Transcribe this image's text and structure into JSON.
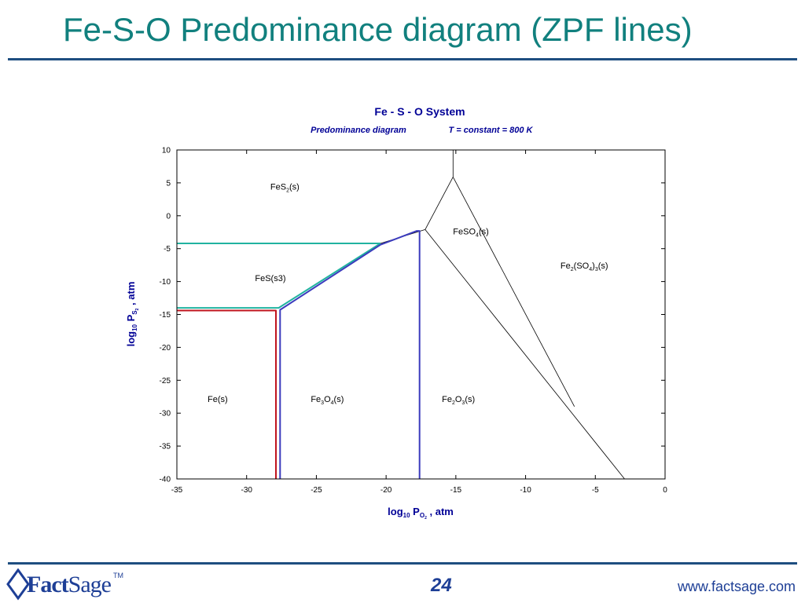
{
  "slide": {
    "title": "Fe-S-O Predominance diagram (ZPF lines)",
    "page_number": "24",
    "website": "www.factsage.com",
    "logo": {
      "text_fact": "Fact",
      "text_sage": "Sage",
      "tm": "TM",
      "icon": "factsage-logo-icon"
    }
  },
  "chart_data": {
    "type": "line",
    "title": "Fe - S - O System",
    "subtitle_left": "Predominance diagram",
    "subtitle_right": "T = constant = 800 K",
    "xlabel": {
      "base": "log",
      "sub": "10",
      "p": " P",
      "psub": "O",
      "psub2": "2",
      "tail": " , atm"
    },
    "ylabel": {
      "base": "log",
      "sub": "10",
      "p": " P",
      "psub": "S",
      "psub2": "2",
      "tail": " , atm"
    },
    "xlim": [
      -35,
      0
    ],
    "ylim": [
      -40,
      10
    ],
    "xticks": [
      -35,
      -30,
      -25,
      -20,
      -15,
      -10,
      -5,
      0
    ],
    "yticks": [
      10,
      5,
      0,
      -5,
      -10,
      -15,
      -20,
      -25,
      -30,
      -35,
      -40
    ],
    "colors": {
      "title": "#000096",
      "black": "#000000",
      "teal": "#21b3a0",
      "blue": "#3b3bbd",
      "red": "#c0141e"
    },
    "regions": [
      {
        "parts": [
          [
            "FeS",
            false
          ],
          [
            "2",
            true
          ],
          [
            "(s)",
            false
          ]
        ],
        "x": -28.3,
        "y": 4.0
      },
      {
        "parts": [
          [
            "FeSO",
            false
          ],
          [
            "4",
            true
          ],
          [
            "(s)",
            false
          ]
        ],
        "x": -15.2,
        "y": -2.8
      },
      {
        "parts": [
          [
            "Fe",
            false
          ],
          [
            "2",
            true
          ],
          [
            "(SO",
            false
          ],
          [
            "4",
            true
          ],
          [
            ")",
            false
          ],
          [
            "3",
            true
          ],
          [
            "(s)",
            false
          ]
        ],
        "x": -7.5,
        "y": -8.0
      },
      {
        "parts": [
          [
            "FeS(s3)",
            false
          ]
        ],
        "x": -29.4,
        "y": -9.9
      },
      {
        "parts": [
          [
            "Fe(s)",
            false
          ]
        ],
        "x": -32.8,
        "y": -28.3
      },
      {
        "parts": [
          [
            "Fe",
            false
          ],
          [
            "3",
            true
          ],
          [
            "O",
            false
          ],
          [
            "4",
            true
          ],
          [
            "(s)",
            false
          ]
        ],
        "x": -25.4,
        "y": -28.3
      },
      {
        "parts": [
          [
            "Fe",
            false
          ],
          [
            "2",
            true
          ],
          [
            "O",
            false
          ],
          [
            "3",
            true
          ],
          [
            "(s)",
            false
          ]
        ],
        "x": -16.0,
        "y": -28.3
      }
    ],
    "series": [
      {
        "color": "black",
        "width": 0.8,
        "points": [
          [
            -15.2,
            14
          ],
          [
            -15.2,
            5.9
          ]
        ]
      },
      {
        "color": "black",
        "width": 0.8,
        "points": [
          [
            -15.2,
            5.9
          ],
          [
            -17.2,
            -2.1
          ]
        ]
      },
      {
        "color": "black",
        "width": 0.8,
        "points": [
          [
            -15.2,
            5.9
          ],
          [
            -6.5,
            -29.0
          ]
        ]
      },
      {
        "color": "black",
        "width": 0.8,
        "points": [
          [
            -17.2,
            -2.1
          ],
          [
            -2.9,
            -40
          ]
        ]
      },
      {
        "color": "black",
        "width": 0.8,
        "points": [
          [
            -20.4,
            -4.2
          ],
          [
            -17.2,
            -2.1
          ]
        ]
      },
      {
        "color": "teal",
        "width": 2.0,
        "points": [
          [
            -35,
            -4.2
          ],
          [
            -20.4,
            -4.2
          ]
        ]
      },
      {
        "color": "teal",
        "width": 2.0,
        "points": [
          [
            -35,
            -14.0
          ],
          [
            -27.7,
            -14.0
          ],
          [
            -20.4,
            -4.2
          ]
        ]
      },
      {
        "color": "red",
        "width": 2.0,
        "points": [
          [
            -35,
            -14.4
          ],
          [
            -27.9,
            -14.4
          ],
          [
            -27.9,
            -40
          ]
        ]
      },
      {
        "color": "blue",
        "width": 2.0,
        "points": [
          [
            -27.6,
            -40
          ],
          [
            -27.6,
            -14.3
          ],
          [
            -20.4,
            -4.4
          ],
          [
            -17.8,
            -2.3
          ],
          [
            -17.6,
            -2.3
          ],
          [
            -17.6,
            -40
          ]
        ]
      }
    ]
  }
}
